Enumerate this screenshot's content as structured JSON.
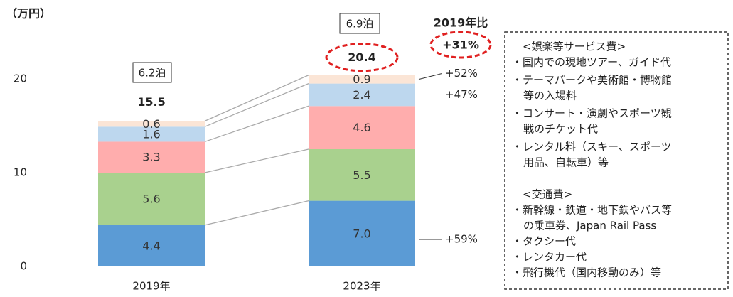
{
  "chart_data": {
    "type": "stacked_bar",
    "y_unit": "（万円）",
    "categories": [
      "2019年",
      "2023年"
    ],
    "series": [
      {
        "color": "#5b9bd5",
        "values": [
          4.4,
          7.0
        ],
        "value_labels": [
          "4.4",
          "7.0"
        ],
        "change": "+59%"
      },
      {
        "color": "#a9d18e",
        "values": [
          5.6,
          5.5
        ],
        "value_labels": [
          "5.6",
          "5.5"
        ]
      },
      {
        "color": "#ffadad",
        "values": [
          3.3,
          4.6
        ],
        "value_labels": [
          "3.3",
          "4.6"
        ]
      },
      {
        "color": "#bdd7ee",
        "values": [
          1.6,
          2.4
        ],
        "value_labels": [
          "1.6",
          "2.4"
        ],
        "change": "+47%"
      },
      {
        "color": "#fbe5d6",
        "values": [
          0.6,
          0.9
        ],
        "value_labels": [
          "0.6",
          "0.9"
        ],
        "change": "+52%"
      }
    ],
    "totals": [
      15.5,
      20.4
    ],
    "nights_labels": [
      "6.2泊",
      "6.9泊"
    ],
    "comparison_title": "2019年比",
    "comparison_value": "+31%",
    "ylim": [
      0,
      25
    ],
    "yticks": [
      0,
      10,
      20
    ],
    "grid": false,
    "notes": [
      {
        "heading": "<娯楽等サービス費>",
        "items": [
          [
            "・国内での現地ツアー、ガイド代"
          ],
          [
            "・テーマパークや美術館・博物館",
            "等の入場料"
          ],
          [
            "・コンサート・演劇やスポーツ観",
            "戦のチケット代"
          ],
          [
            "・レンタル料（スキー、スポーツ",
            "用品、自転車）等"
          ]
        ]
      },
      {
        "heading": "<交通費>",
        "items": [
          [
            "・新幹線・鉄道・地下鉄やバス等",
            "の乗車券、Japan Rail Pass"
          ],
          [
            "・タクシー代"
          ],
          [
            "・レンタカー代"
          ],
          [
            "・飛行機代（国内移動のみ）等"
          ]
        ]
      }
    ]
  }
}
